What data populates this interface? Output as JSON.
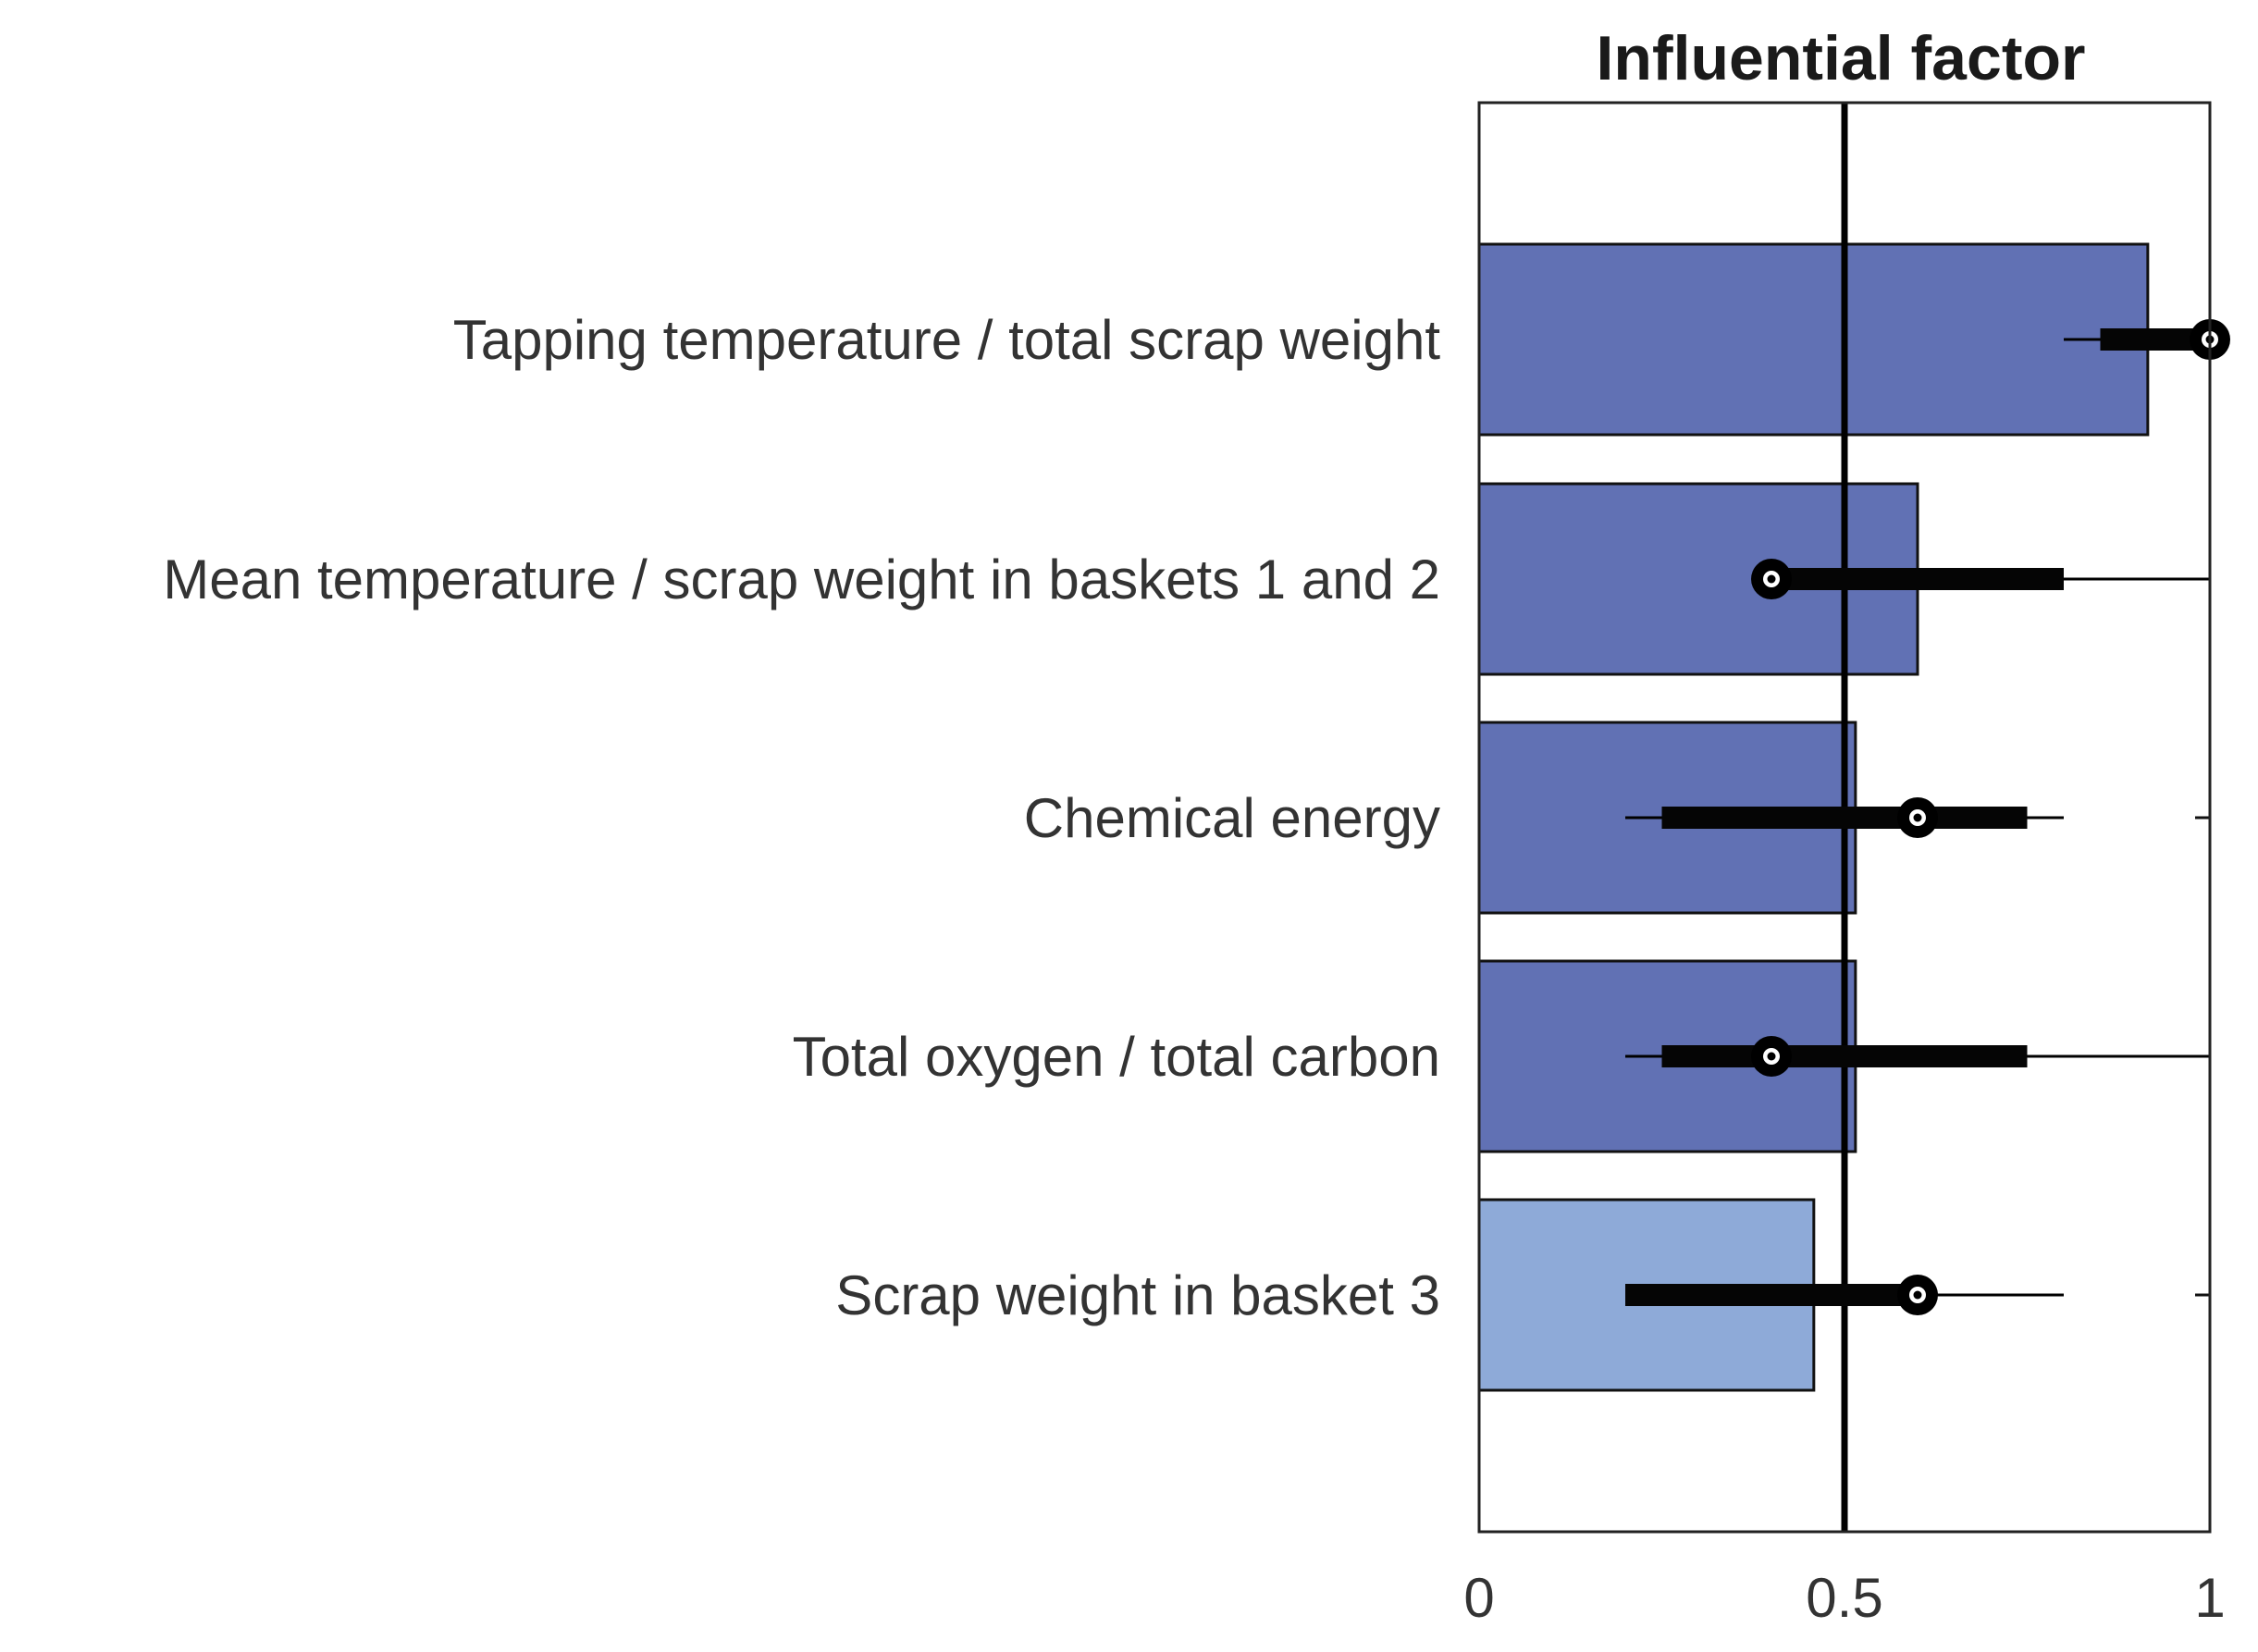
{
  "chart_data": {
    "type": "bar",
    "orientation": "horizontal",
    "title": "Influential factor",
    "xlabel": "",
    "ylabel": "",
    "xlim": [
      0,
      1
    ],
    "x_ticks": [
      {
        "value": 0,
        "label": "0"
      },
      {
        "value": 0.5,
        "label": "0.5"
      },
      {
        "value": 1,
        "label": "1"
      }
    ],
    "reference_line": 0.5,
    "grid": false,
    "legend": "none",
    "categories": [
      "Tapping temperature / total scrap weight",
      "Mean temperature / scrap weight in baskets 1 and 2",
      "Chemical energy",
      "Total oxygen / total carbon",
      "Scrap weight in basket 3"
    ],
    "values": [
      0.915,
      0.6,
      0.515,
      0.515,
      0.458
    ],
    "bar_colors": [
      "#6171b4",
      "#6171b4",
      "#6171b4",
      "#6171b4",
      "#8eaad8"
    ],
    "intervals": [
      {
        "point": 1.0,
        "thick_low": 0.85,
        "thick_high": 1.0,
        "thin_low": 0.8,
        "thin_high": 1.0
      },
      {
        "point": 0.4,
        "thick_low": 0.4,
        "thick_high": 0.8,
        "thin_low": 0.4,
        "thin_high": 1.0
      },
      {
        "point": 0.6,
        "thick_low": 0.25,
        "thick_high": 0.75,
        "thin_low": 0.2,
        "thin_high": 0.8
      },
      {
        "point": 0.4,
        "thick_low": 0.25,
        "thick_high": 0.75,
        "thin_low": 0.2,
        "thin_high": 1.0
      },
      {
        "point": 0.6,
        "thick_low": 0.2,
        "thick_high": 0.6,
        "thin_low": 0.2,
        "thin_high": 0.8
      }
    ]
  }
}
